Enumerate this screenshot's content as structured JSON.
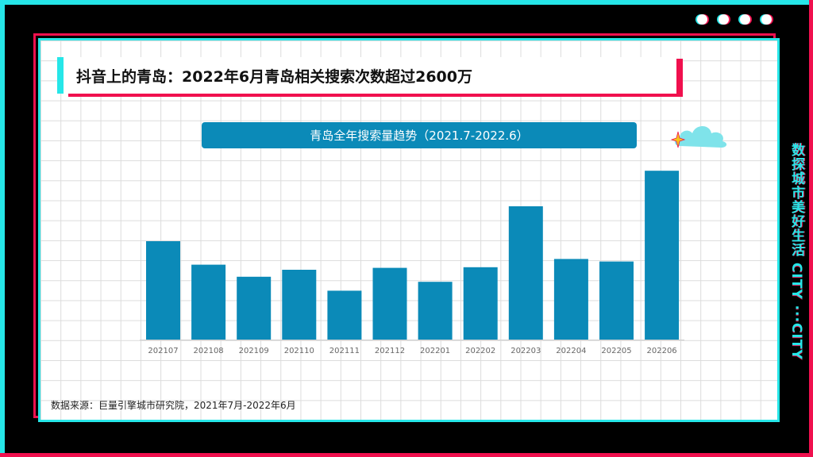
{
  "slide_title": "抖音上的青岛：2022年6月青岛相关搜索次数超过2600万",
  "side_label": "数探城市美好生活 CITY ···CITY",
  "source_note": "数据来源：巨量引擎城市研究院，2021年7月-2022年6月",
  "colors": {
    "bar": "#0b8ab8",
    "cyan": "#26e6e8",
    "red": "#f0104e"
  },
  "chart_data": {
    "type": "bar",
    "title": "青岛全年搜索量趋势（2021.7-2022.6）",
    "xlabel": "",
    "ylabel": "",
    "categories": [
      "202107",
      "202108",
      "202109",
      "202110",
      "202111",
      "202112",
      "202201",
      "202202",
      "202203",
      "202204",
      "202205",
      "202206"
    ],
    "values": [
      15.5,
      11.8,
      9.9,
      11.0,
      7.7,
      11.3,
      9.1,
      11.4,
      21.0,
      12.7,
      12.3,
      26.6
    ],
    "ylim": [
      0,
      30
    ],
    "grid": false,
    "legend": "none"
  }
}
